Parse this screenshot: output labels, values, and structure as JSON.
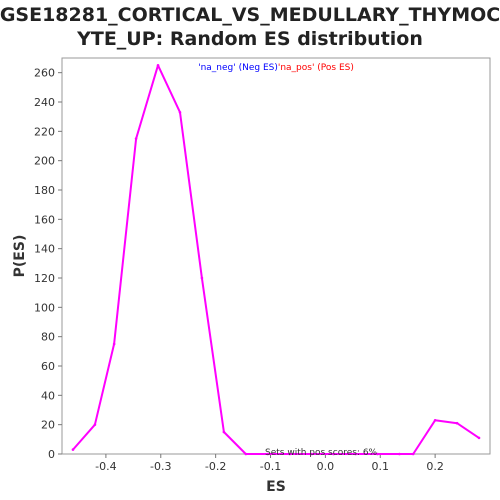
{
  "chart_data": {
    "type": "line",
    "title_lines": [
      "GSE18281_CORTICAL_VS_MEDULLARY_THYMOC",
      "YTE_UP: Random ES distribution"
    ],
    "xlabel": "ES",
    "ylabel": "P(ES)",
    "xlim": [
      -0.48,
      0.3
    ],
    "ylim": [
      0,
      270
    ],
    "x_ticks": [
      -0.4,
      -0.3,
      -0.2,
      -0.1,
      0.0,
      0.1,
      0.2
    ],
    "x_tick_labels": [
      "-0.4",
      "-0.3",
      "-0.2",
      "-0.1",
      "0.0",
      "0.1",
      "0.2"
    ],
    "y_ticks": [
      0,
      20,
      40,
      60,
      80,
      100,
      120,
      140,
      160,
      180,
      200,
      220,
      240,
      260
    ],
    "grid": false,
    "legend": {
      "placement": "top-center",
      "entries": [
        {
          "text": "'na_neg' (Neg ES)",
          "color": "#0000ff"
        },
        {
          "text": "'na_pos' (Pos ES)",
          "color": "#ff0000"
        }
      ]
    },
    "annotation": "Sets with pos scores: 6%",
    "series": [
      {
        "color": "#ff00ff",
        "x": [
          -0.46,
          -0.42,
          -0.385,
          -0.345,
          -0.305,
          -0.265,
          -0.225,
          -0.185,
          -0.145,
          -0.105,
          -0.065,
          -0.025,
          0.015,
          0.055,
          0.095,
          0.135,
          0.16,
          0.2,
          0.24,
          0.28
        ],
        "y": [
          3,
          20,
          75,
          215,
          265,
          233,
          120,
          15,
          0,
          0,
          0,
          0,
          0,
          0,
          0,
          0,
          0,
          23,
          21,
          11
        ]
      }
    ]
  }
}
